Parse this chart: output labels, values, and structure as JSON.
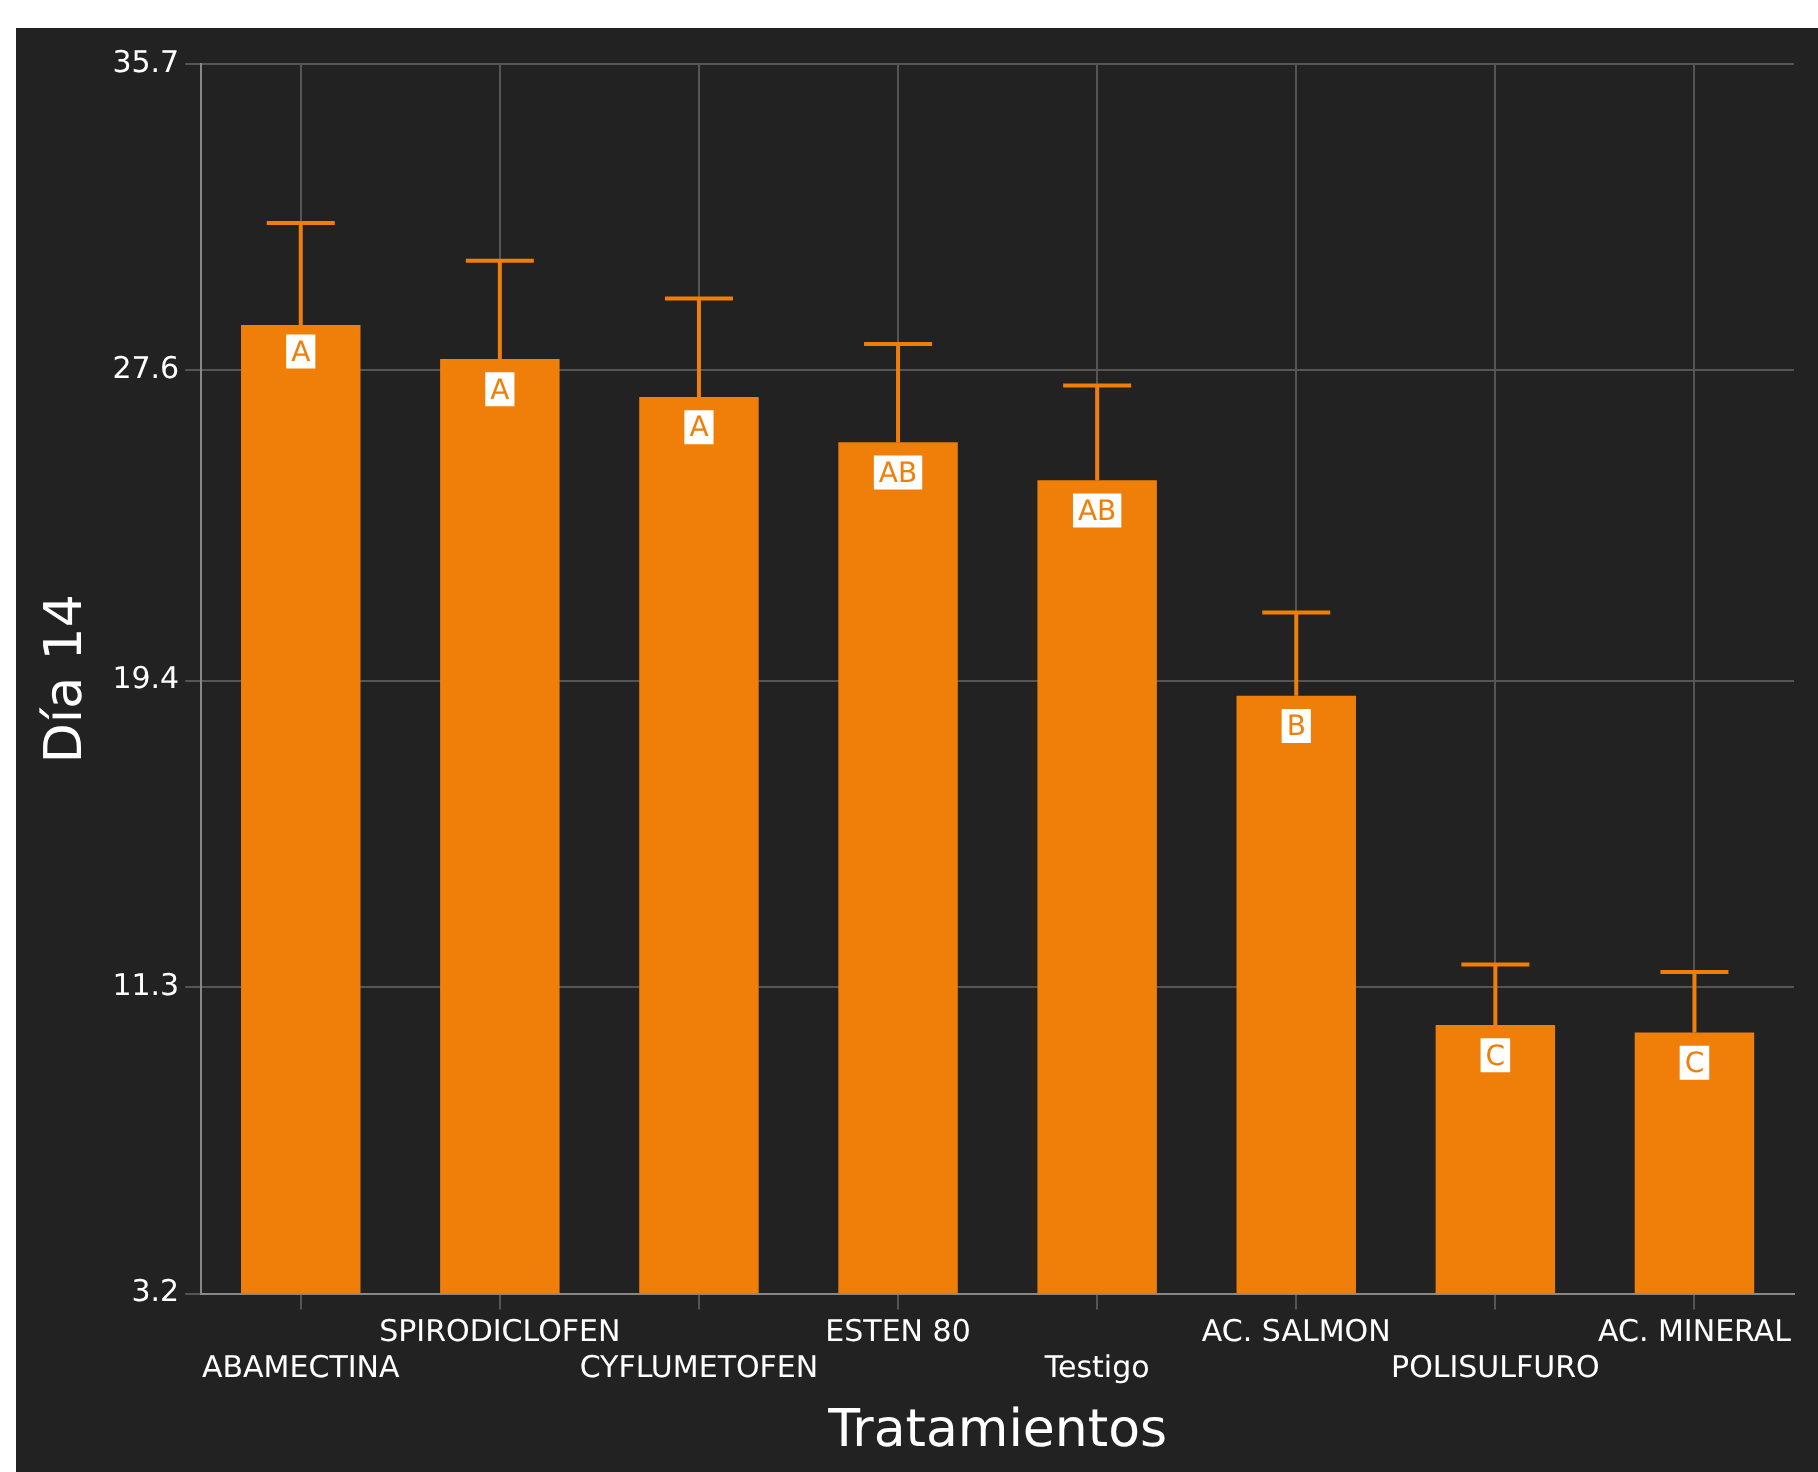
{
  "chart_data": {
    "type": "bar",
    "xlabel": "Tratamientos",
    "ylabel": "Día 14",
    "categories": [
      "ABAMECTINA",
      "SPIRODICLOFEN",
      "CYFLUMETOFEN",
      "ESTEN 80",
      "Testigo",
      "AC. SALMON",
      "POLISULFURO",
      "AC. MINERAL"
    ],
    "values": [
      28.8,
      27.9,
      26.9,
      25.7,
      24.7,
      19.0,
      10.3,
      10.1
    ],
    "errors": [
      [
        28.8,
        31.5
      ],
      [
        27.9,
        30.5
      ],
      [
        26.9,
        29.5
      ],
      [
        25.7,
        28.3
      ],
      [
        24.7,
        27.2
      ],
      [
        19.0,
        21.2
      ],
      [
        10.3,
        11.9
      ],
      [
        10.1,
        11.7
      ]
    ],
    "color": "#f07f09",
    "ylim": [
      3.2,
      35.7
    ],
    "yticks": [
      3.2,
      11.3,
      19.4,
      27.6,
      35.7
    ],
    "grid": true,
    "legend": false,
    "annotations": [
      {
        "text": "A",
        "x": "ABAMECTINA",
        "y": 28.1
      },
      {
        "text": "A",
        "x": "SPIRODICLOFEN",
        "y": 27.1
      },
      {
        "text": "A",
        "x": "CYFLUMETOFEN",
        "y": 26.1
      },
      {
        "text": "AB",
        "x": "ESTEN 80",
        "y": 24.9
      },
      {
        "text": "AB",
        "x": "Testigo",
        "y": 23.9
      },
      {
        "text": "B",
        "x": "AC. SALMON",
        "y": 18.2
      },
      {
        "text": "C",
        "x": "POLISULFURO",
        "y": 9.5
      },
      {
        "text": "C",
        "x": "AC. MINERAL",
        "y": 9.3
      }
    ]
  }
}
